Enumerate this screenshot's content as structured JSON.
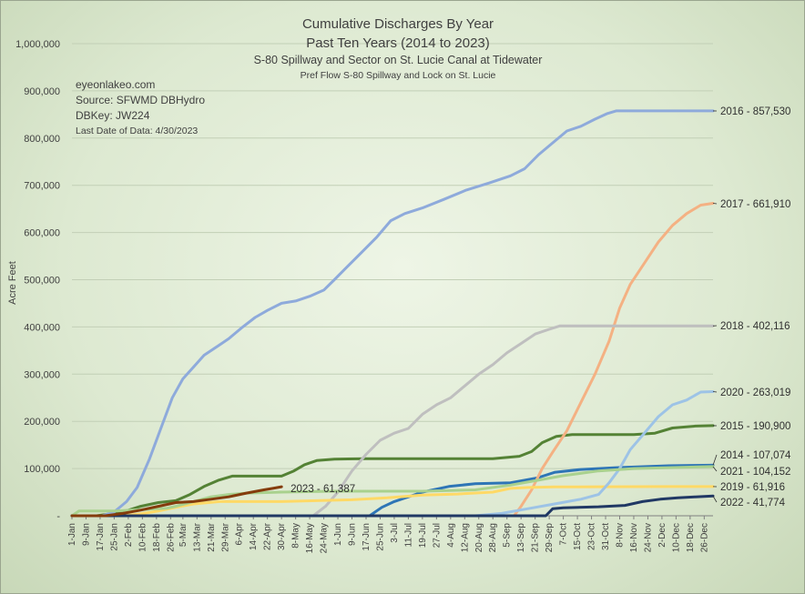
{
  "chart_data": {
    "type": "line",
    "title": "Cumulative Discharges By Year",
    "subtitle": "Past Ten Years (2014 to 2023)",
    "subtitle2": "S-80 Spillway and Sector on St. Lucie Canal at Tidewater",
    "subtitle3": "Pref Flow S-80 Spillway and Lock on St. Lucie",
    "info": {
      "site": "eyeonlakeo.com",
      "source": "Source: SFWMD DBHydro",
      "dbkey": "DBKey: JW224",
      "last_date": "Last Date of Data: 4/30/2023"
    },
    "ylabel": "Acre Feet",
    "xlabel": "",
    "ylim": [
      0,
      1000000
    ],
    "y_ticks": [
      "-",
      "100,000",
      "200,000",
      "300,000",
      "400,000",
      "500,000",
      "600,000",
      "700,000",
      "800,000",
      "900,000",
      "1,000,000"
    ],
    "x_ticks": [
      {
        "label": "1-Jan",
        "day": 1
      },
      {
        "label": "9-Jan",
        "day": 9
      },
      {
        "label": "17-Jan",
        "day": 17
      },
      {
        "label": "25-Jan",
        "day": 25
      },
      {
        "label": "2-Feb",
        "day": 33
      },
      {
        "label": "10-Feb",
        "day": 41
      },
      {
        "label": "18-Feb",
        "day": 49
      },
      {
        "label": "26-Feb",
        "day": 57
      },
      {
        "label": "5-Mar",
        "day": 64
      },
      {
        "label": "13-Mar",
        "day": 72
      },
      {
        "label": "21-Mar",
        "day": 80
      },
      {
        "label": "29-Mar",
        "day": 88
      },
      {
        "label": "6-Apr",
        "day": 96
      },
      {
        "label": "14-Apr",
        "day": 104
      },
      {
        "label": "22-Apr",
        "day": 112
      },
      {
        "label": "30-Apr",
        "day": 120
      },
      {
        "label": "8-May",
        "day": 128
      },
      {
        "label": "16-May",
        "day": 136
      },
      {
        "label": "24-May",
        "day": 144
      },
      {
        "label": "1-Jun",
        "day": 152
      },
      {
        "label": "9-Jun",
        "day": 160
      },
      {
        "label": "17-Jun",
        "day": 168
      },
      {
        "label": "25-Jun",
        "day": 176
      },
      {
        "label": "3-Jul",
        "day": 184
      },
      {
        "label": "11-Jul",
        "day": 192
      },
      {
        "label": "19-Jul",
        "day": 200
      },
      {
        "label": "27-Jul",
        "day": 208
      },
      {
        "label": "4-Aug",
        "day": 216
      },
      {
        "label": "12-Aug",
        "day": 224
      },
      {
        "label": "20-Aug",
        "day": 232
      },
      {
        "label": "28-Aug",
        "day": 240
      },
      {
        "label": "5-Sep",
        "day": 248
      },
      {
        "label": "13-Sep",
        "day": 256
      },
      {
        "label": "21-Sep",
        "day": 264
      },
      {
        "label": "29-Sep",
        "day": 272
      },
      {
        "label": "7-Oct",
        "day": 280
      },
      {
        "label": "15-Oct",
        "day": 288
      },
      {
        "label": "23-Oct",
        "day": 296
      },
      {
        "label": "31-Oct",
        "day": 304
      },
      {
        "label": "8-Nov",
        "day": 312
      },
      {
        "label": "16-Nov",
        "day": 320
      },
      {
        "label": "24-Nov",
        "day": 328
      },
      {
        "label": "2-Dec",
        "day": 336
      },
      {
        "label": "10-Dec",
        "day": 344
      },
      {
        "label": "18-Dec",
        "day": 352
      },
      {
        "label": "26-Dec",
        "day": 360
      }
    ],
    "x_range": [
      1,
      365
    ],
    "series": [
      {
        "name": "2014",
        "label": "2014 - 107,074",
        "color": "#2e75b6",
        "points": [
          [
            1,
            0
          ],
          [
            170,
            0
          ],
          [
            177,
            18000
          ],
          [
            184,
            30000
          ],
          [
            200,
            50000
          ],
          [
            215,
            62000
          ],
          [
            230,
            68000
          ],
          [
            250,
            70000
          ],
          [
            265,
            80000
          ],
          [
            275,
            92000
          ],
          [
            290,
            98000
          ],
          [
            310,
            102000
          ],
          [
            340,
            106000
          ],
          [
            365,
            107074
          ]
        ]
      },
      {
        "name": "2015",
        "label": "2015 - 190,900",
        "color": "#548235",
        "points": [
          [
            1,
            0
          ],
          [
            15,
            0
          ],
          [
            30,
            8000
          ],
          [
            40,
            20000
          ],
          [
            50,
            28000
          ],
          [
            60,
            32000
          ],
          [
            68,
            45000
          ],
          [
            76,
            62000
          ],
          [
            84,
            75000
          ],
          [
            92,
            84000
          ],
          [
            100,
            84000
          ],
          [
            112,
            84000
          ],
          [
            120,
            84000
          ],
          [
            127,
            95000
          ],
          [
            133,
            108000
          ],
          [
            140,
            117000
          ],
          [
            150,
            120000
          ],
          [
            168,
            121000
          ],
          [
            200,
            121000
          ],
          [
            240,
            121000
          ],
          [
            255,
            126000
          ],
          [
            262,
            136000
          ],
          [
            268,
            155000
          ],
          [
            276,
            168000
          ],
          [
            285,
            172000
          ],
          [
            300,
            172000
          ],
          [
            320,
            172000
          ],
          [
            332,
            175000
          ],
          [
            342,
            186000
          ],
          [
            355,
            190000
          ],
          [
            365,
            190900
          ]
        ]
      },
      {
        "name": "2016",
        "label": "2016 - 857,530",
        "color": "#8eaadb",
        "points": [
          [
            1,
            0
          ],
          [
            18,
            0
          ],
          [
            25,
            8000
          ],
          [
            32,
            30000
          ],
          [
            38,
            60000
          ],
          [
            45,
            120000
          ],
          [
            52,
            190000
          ],
          [
            58,
            250000
          ],
          [
            64,
            290000
          ],
          [
            70,
            315000
          ],
          [
            76,
            340000
          ],
          [
            84,
            360000
          ],
          [
            90,
            375000
          ],
          [
            98,
            400000
          ],
          [
            105,
            420000
          ],
          [
            112,
            435000
          ],
          [
            120,
            450000
          ],
          [
            128,
            455000
          ],
          [
            136,
            465000
          ],
          [
            144,
            478000
          ],
          [
            150,
            500000
          ],
          [
            158,
            530000
          ],
          [
            166,
            560000
          ],
          [
            174,
            590000
          ],
          [
            182,
            625000
          ],
          [
            190,
            640000
          ],
          [
            200,
            652000
          ],
          [
            212,
            670000
          ],
          [
            225,
            690000
          ],
          [
            238,
            705000
          ],
          [
            250,
            720000
          ],
          [
            258,
            735000
          ],
          [
            266,
            765000
          ],
          [
            274,
            790000
          ],
          [
            282,
            815000
          ],
          [
            290,
            825000
          ],
          [
            298,
            840000
          ],
          [
            305,
            852000
          ],
          [
            310,
            857530
          ],
          [
            340,
            857530
          ],
          [
            365,
            857530
          ]
        ]
      },
      {
        "name": "2017",
        "label": "2017 - 661,910",
        "color": "#f4b183",
        "points": [
          [
            1,
            0
          ],
          [
            252,
            0
          ],
          [
            256,
            20000
          ],
          [
            262,
            55000
          ],
          [
            268,
            100000
          ],
          [
            274,
            135000
          ],
          [
            282,
            180000
          ],
          [
            290,
            240000
          ],
          [
            298,
            300000
          ],
          [
            306,
            370000
          ],
          [
            312,
            440000
          ],
          [
            318,
            490000
          ],
          [
            326,
            535000
          ],
          [
            334,
            580000
          ],
          [
            342,
            615000
          ],
          [
            350,
            640000
          ],
          [
            358,
            658000
          ],
          [
            365,
            661910
          ]
        ]
      },
      {
        "name": "2018",
        "label": "2018 - 402,116",
        "color": "#bfbfbf",
        "points": [
          [
            1,
            0
          ],
          [
            138,
            0
          ],
          [
            145,
            20000
          ],
          [
            152,
            50000
          ],
          [
            160,
            95000
          ],
          [
            168,
            130000
          ],
          [
            176,
            160000
          ],
          [
            184,
            175000
          ],
          [
            192,
            185000
          ],
          [
            200,
            215000
          ],
          [
            208,
            235000
          ],
          [
            216,
            250000
          ],
          [
            224,
            275000
          ],
          [
            232,
            300000
          ],
          [
            240,
            320000
          ],
          [
            248,
            345000
          ],
          [
            256,
            365000
          ],
          [
            264,
            385000
          ],
          [
            272,
            395000
          ],
          [
            278,
            402116
          ],
          [
            300,
            402116
          ],
          [
            365,
            402116
          ]
        ]
      },
      {
        "name": "2019",
        "label": "2019 - 61,916",
        "color": "#ffd966",
        "points": [
          [
            1,
            0
          ],
          [
            30,
            0
          ],
          [
            40,
            4000
          ],
          [
            50,
            10000
          ],
          [
            60,
            18000
          ],
          [
            70,
            25000
          ],
          [
            85,
            30000
          ],
          [
            100,
            30000
          ],
          [
            120,
            30000
          ],
          [
            140,
            32000
          ],
          [
            160,
            34000
          ],
          [
            180,
            38000
          ],
          [
            200,
            44000
          ],
          [
            220,
            46000
          ],
          [
            240,
            50000
          ],
          [
            250,
            58000
          ],
          [
            260,
            60000
          ],
          [
            275,
            61000
          ],
          [
            300,
            61500
          ],
          [
            340,
            61800
          ],
          [
            365,
            61916
          ]
        ]
      },
      {
        "name": "2020",
        "label": "2020 - 263,019",
        "color": "#9dc3e6",
        "points": [
          [
            1,
            0
          ],
          [
            230,
            0
          ],
          [
            245,
            5000
          ],
          [
            260,
            15000
          ],
          [
            275,
            25000
          ],
          [
            290,
            35000
          ],
          [
            300,
            45000
          ],
          [
            306,
            70000
          ],
          [
            312,
            100000
          ],
          [
            318,
            140000
          ],
          [
            326,
            175000
          ],
          [
            334,
            210000
          ],
          [
            342,
            235000
          ],
          [
            350,
            245000
          ],
          [
            358,
            262000
          ],
          [
            365,
            263019
          ]
        ]
      },
      {
        "name": "2021",
        "label": "2021 - 104,152",
        "color": "#a9d18e",
        "points": [
          [
            1,
            0
          ],
          [
            5,
            10000
          ],
          [
            15,
            10000
          ],
          [
            25,
            10000
          ],
          [
            35,
            12000
          ],
          [
            45,
            14000
          ],
          [
            55,
            16000
          ],
          [
            60,
            20000
          ],
          [
            70,
            30000
          ],
          [
            80,
            40000
          ],
          [
            90,
            45000
          ],
          [
            100,
            48000
          ],
          [
            120,
            50000
          ],
          [
            150,
            52000
          ],
          [
            200,
            52000
          ],
          [
            230,
            55000
          ],
          [
            250,
            65000
          ],
          [
            265,
            75000
          ],
          [
            280,
            85000
          ],
          [
            300,
            95000
          ],
          [
            320,
            100000
          ],
          [
            340,
            102000
          ],
          [
            365,
            104152
          ]
        ]
      },
      {
        "name": "2022",
        "label": "2022 - 41,774",
        "color": "#203864",
        "points": [
          [
            1,
            0
          ],
          [
            270,
            0
          ],
          [
            274,
            15000
          ],
          [
            280,
            17000
          ],
          [
            300,
            19000
          ],
          [
            315,
            22000
          ],
          [
            325,
            30000
          ],
          [
            335,
            35000
          ],
          [
            345,
            38000
          ],
          [
            355,
            40000
          ],
          [
            365,
            41774
          ]
        ]
      },
      {
        "name": "2023",
        "label": "2023 - 61,387",
        "color": "#843c0c",
        "points": [
          [
            1,
            0
          ],
          [
            20,
            0
          ],
          [
            30,
            5000
          ],
          [
            40,
            12000
          ],
          [
            50,
            20000
          ],
          [
            60,
            28000
          ],
          [
            70,
            30000
          ],
          [
            80,
            35000
          ],
          [
            90,
            40000
          ],
          [
            100,
            48000
          ],
          [
            110,
            55000
          ],
          [
            115,
            58000
          ],
          [
            120,
            61387
          ]
        ]
      }
    ]
  }
}
